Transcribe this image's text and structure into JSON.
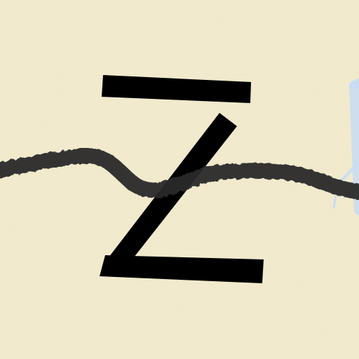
{
  "captcha": {
    "characters": "Z",
    "background_color": "#f4eccf",
    "glyph_color": "#000000",
    "noise_stroke_color": "#2a2a2a",
    "accent_stroke_color": "#c9dcf3"
  }
}
